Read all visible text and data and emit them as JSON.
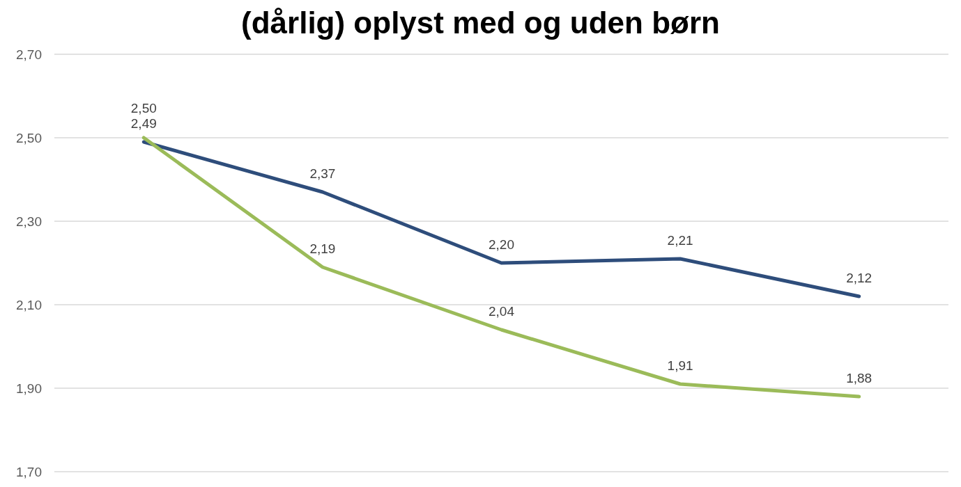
{
  "chart_data": {
    "type": "line",
    "title": "(dårlig) oplyst med og uden børn",
    "categories": [
      null,
      null,
      null,
      null,
      null
    ],
    "series": [
      {
        "color": "#2e4d7b",
        "values": [
          2.49,
          2.37,
          2.2,
          2.21,
          2.12
        ],
        "value_labels": [
          "2,49",
          "2,37",
          "2,20",
          "2,21",
          "2,12"
        ]
      },
      {
        "color": "#9bbb59",
        "values": [
          2.5,
          2.19,
          2.04,
          1.91,
          1.88
        ],
        "value_labels": [
          "2,50",
          "2,19",
          "2,04",
          "1,91",
          "1,88"
        ]
      }
    ],
    "ylim": [
      1.7,
      2.7
    ],
    "yticks": [
      {
        "value": 1.7,
        "label": "1,70"
      },
      {
        "value": 1.9,
        "label": "1,90"
      },
      {
        "value": 2.1,
        "label": "2,10"
      },
      {
        "value": 2.3,
        "label": "2,30"
      },
      {
        "value": 2.5,
        "label": "2,50"
      },
      {
        "value": 2.7,
        "label": "2,70"
      }
    ],
    "grid": "y",
    "marker": "none",
    "line_style": "solid"
  }
}
